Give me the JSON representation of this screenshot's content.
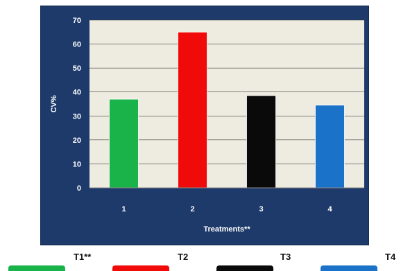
{
  "chart_data": {
    "type": "bar",
    "categories": [
      "1",
      "2",
      "3",
      "4"
    ],
    "values": [
      37,
      65,
      38.5,
      34.5
    ],
    "colors": [
      "#19b34a",
      "#f00a0a",
      "#0a0a0a",
      "#1a73c8"
    ],
    "xlabel": "Treatments**",
    "ylabel": "CV%",
    "ylim": [
      0,
      70
    ],
    "yticks": [
      0,
      10,
      20,
      30,
      40,
      50,
      60,
      70
    ],
    "grid": true,
    "plot_background": "#eeebe0",
    "panel_background": "#1e3a6a"
  },
  "legend": {
    "items": [
      {
        "label": "T1**",
        "color": "#19b34a"
      },
      {
        "label": "T2",
        "color": "#f00a0a"
      },
      {
        "label": "T3",
        "color": "#0a0a0a"
      },
      {
        "label": "T4",
        "color": "#1a73c8"
      }
    ]
  }
}
